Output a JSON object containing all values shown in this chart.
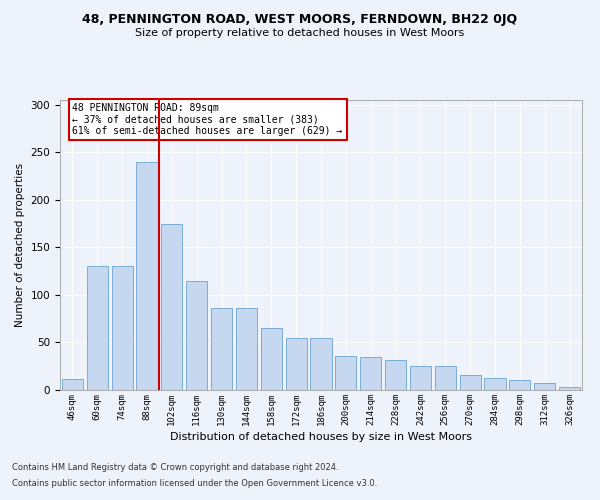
{
  "title1": "48, PENNINGTON ROAD, WEST MOORS, FERNDOWN, BH22 0JQ",
  "title2": "Size of property relative to detached houses in West Moors",
  "xlabel": "Distribution of detached houses by size in West Moors",
  "ylabel": "Number of detached properties",
  "categories": [
    "46sqm",
    "60sqm",
    "74sqm",
    "88sqm",
    "102sqm",
    "116sqm",
    "130sqm",
    "144sqm",
    "158sqm",
    "172sqm",
    "186sqm",
    "200sqm",
    "214sqm",
    "228sqm",
    "242sqm",
    "256sqm",
    "270sqm",
    "284sqm",
    "298sqm",
    "312sqm",
    "326sqm"
  ],
  "values": [
    12,
    130,
    130,
    240,
    175,
    115,
    86,
    86,
    65,
    55,
    55,
    36,
    35,
    32,
    25,
    25,
    16,
    13,
    10,
    7,
    3
  ],
  "bar_color": "#c5d8f0",
  "bar_edge_color": "#7aadd4",
  "highlight_index": 3,
  "highlight_line_color": "#cc0000",
  "annotation_text": "48 PENNINGTON ROAD: 89sqm\n← 37% of detached houses are smaller (383)\n61% of semi-detached houses are larger (629) →",
  "annotation_box_color": "#ffffff",
  "annotation_box_edge_color": "#cc0000",
  "ylim": [
    0,
    305
  ],
  "yticks": [
    0,
    50,
    100,
    150,
    200,
    250,
    300
  ],
  "footer1": "Contains HM Land Registry data © Crown copyright and database right 2024.",
  "footer2": "Contains public sector information licensed under the Open Government Licence v3.0.",
  "background_color": "#eef2fb",
  "grid_color": "#ffffff",
  "ax_background": "#eef2fb"
}
